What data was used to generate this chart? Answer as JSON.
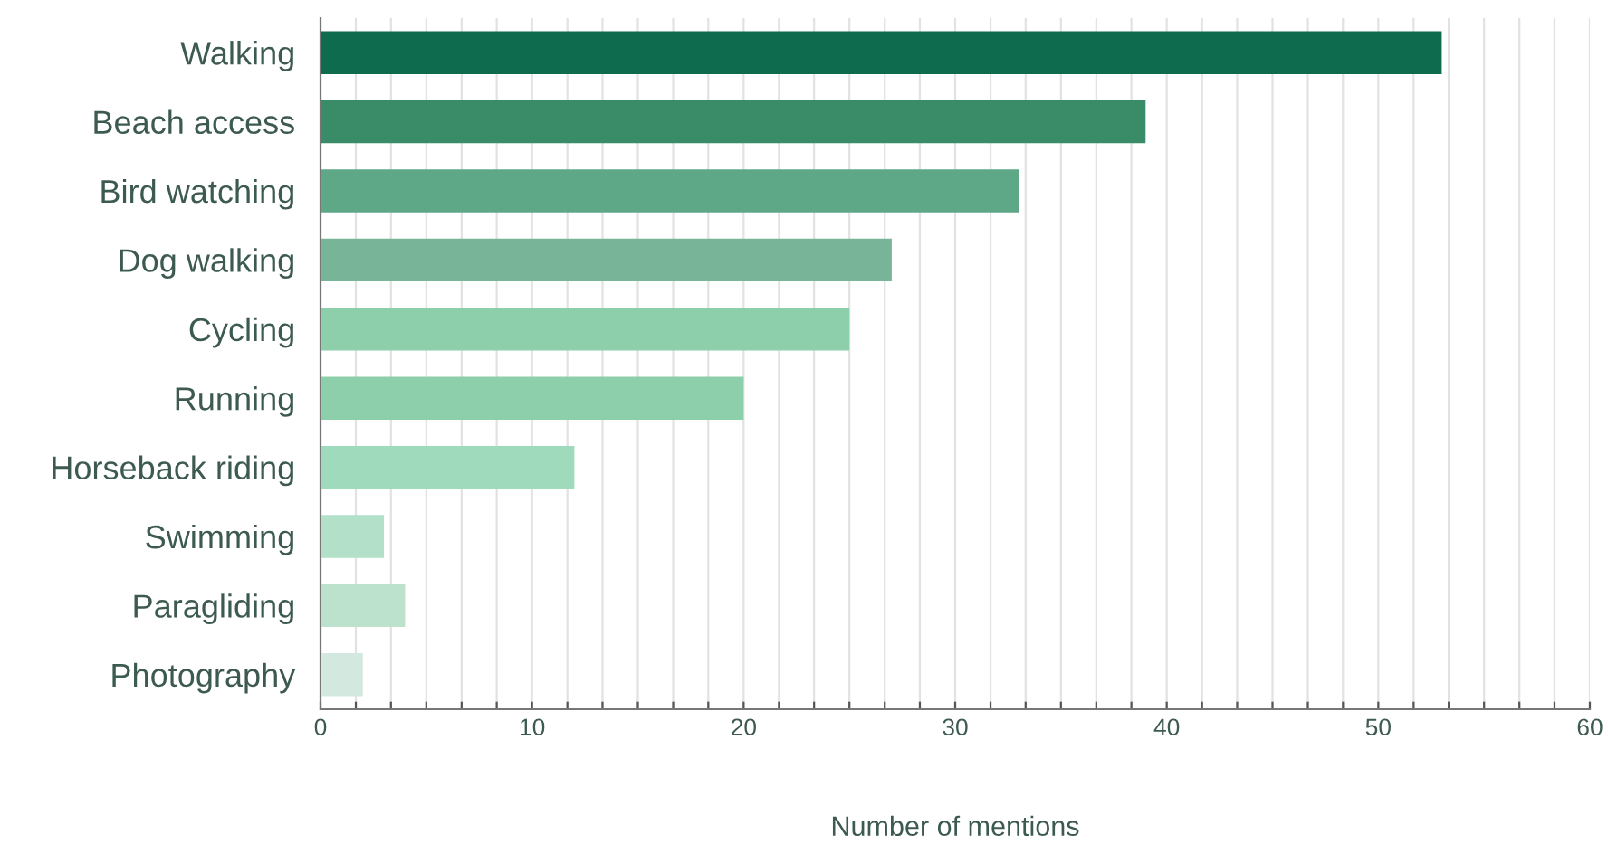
{
  "chart_data": {
    "type": "bar",
    "orientation": "horizontal",
    "xlabel": "Number of mentions",
    "categories": [
      "Walking",
      "Beach access",
      "Bird watching",
      "Dog walking",
      "Cycling",
      "Running",
      "Horseback riding",
      "Swimming",
      "Paragliding",
      "Photography"
    ],
    "values": [
      53,
      39,
      33,
      27,
      25,
      20,
      12,
      3,
      4,
      2
    ],
    "colors": [
      "#0f6b4e",
      "#3a8c68",
      "#5ea787",
      "#77b498",
      "#8ecfab",
      "#8ccfaa",
      "#a0dabd",
      "#b2e0c8",
      "#bce2cd",
      "#d3e9df"
    ],
    "xlim": [
      0,
      60
    ],
    "xticks": [
      0,
      {
        "value": 1.67,
        "label": null
      },
      {
        "value": 3.33,
        "label": null
      },
      {
        "value": 5,
        "label": null
      },
      {
        "value": 6.67,
        "label": null
      },
      {
        "value": 8.33,
        "label": null
      },
      10,
      {
        "value": 11.67,
        "label": null
      },
      {
        "value": 13.33,
        "label": null
      },
      {
        "value": 15,
        "label": null
      },
      {
        "value": 16.67,
        "label": null
      },
      {
        "value": 18.33,
        "label": null
      },
      20,
      {
        "value": 21.67,
        "label": null
      },
      {
        "value": 23.33,
        "label": null
      },
      {
        "value": 25,
        "label": null
      },
      {
        "value": 26.67,
        "label": null
      },
      {
        "value": 28.33,
        "label": null
      },
      30,
      {
        "value": 31.67,
        "label": null
      },
      {
        "value": 33.33,
        "label": null
      },
      {
        "value": 35,
        "label": null
      },
      {
        "value": 36.67,
        "label": null
      },
      {
        "value": 38.33,
        "label": null
      },
      40,
      {
        "value": 41.67,
        "label": null
      },
      {
        "value": 43.33,
        "label": null
      },
      {
        "value": 45,
        "label": null
      },
      {
        "value": 46.67,
        "label": null
      },
      {
        "value": 48.33,
        "label": null
      },
      50,
      {
        "value": 51.67,
        "label": null
      },
      {
        "value": 53.33,
        "label": null
      },
      {
        "value": 55,
        "label": null
      },
      {
        "value": 56.67,
        "label": null
      },
      {
        "value": 58.33,
        "label": null
      },
      60
    ],
    "grid": "x"
  }
}
